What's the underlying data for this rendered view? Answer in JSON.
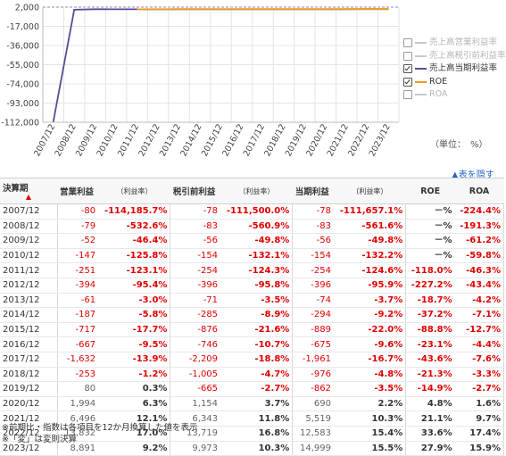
{
  "chart_data": {
    "type": "line",
    "categories": [
      "2007/12",
      "2008/12",
      "2009/12",
      "2010/12",
      "2011/12",
      "2012/12",
      "2013/12",
      "2014/12",
      "2015/12",
      "2016/12",
      "2017/12",
      "2018/12",
      "2019/12",
      "2020/12",
      "2021/12",
      "2022/12",
      "2023/12"
    ],
    "y_ticks": [
      "2,000",
      "-17,000",
      "-36,000",
      "-55,000",
      "-74,000",
      "-93,000",
      "-112,000"
    ],
    "ylim": [
      -112000,
      2000
    ],
    "series": [
      {
        "name": "売上高当期利益率",
        "color": "#5c4a96",
        "values": [
          -111657.1,
          -561.6,
          -49.8,
          -132.2,
          -124.6,
          -95.9,
          -3.7,
          -9.2,
          -22.0,
          -9.6,
          -16.7,
          -4.8,
          -3.5,
          2.2,
          10.3,
          15.4,
          15.5
        ]
      },
      {
        "name": "ROE",
        "color": "#f29a18",
        "values": [
          null,
          null,
          null,
          null,
          -118.0,
          -227.2,
          -18.7,
          -37.2,
          -88.8,
          -23.1,
          -43.6,
          -21.3,
          -14.9,
          4.8,
          21.1,
          33.6,
          27.9
        ]
      }
    ],
    "legend": [
      {
        "label": "売上高営業利益率",
        "checked": false,
        "color": "#c8c8c8"
      },
      {
        "label": "売上高税引前利益率",
        "checked": false,
        "color": "#c8c8c8"
      },
      {
        "label": "売上高当期利益率",
        "checked": true,
        "color": "#5c4a96"
      },
      {
        "label": "ROE",
        "checked": true,
        "color": "#f29a18"
      },
      {
        "label": "ROA",
        "checked": false,
        "color": "#c8c8c8"
      }
    ],
    "legend_position": "right",
    "unit_note": "（単位：　%）"
  },
  "hide_table_label": "▲表を隠す",
  "table": {
    "headers": [
      "決算期",
      "営業利益",
      "（利益率）",
      "税引前利益",
      "（利益率）",
      "当期利益",
      "（利益率）",
      "ROE",
      "ROA"
    ],
    "sort_marker": "▲",
    "rows": [
      [
        "2007/12",
        "-80",
        "-114,185.7%",
        "-78",
        "-111,500.0%",
        "-78",
        "-111,657.1%",
        "－%",
        "-224.4%"
      ],
      [
        "2008/12",
        "-79",
        "-532.6%",
        "-83",
        "-560.9%",
        "-83",
        "-561.6%",
        "－%",
        "-191.3%"
      ],
      [
        "2009/12",
        "-52",
        "-46.4%",
        "-56",
        "-49.8%",
        "-56",
        "-49.8%",
        "－%",
        "-61.2%"
      ],
      [
        "2010/12",
        "-147",
        "-125.8%",
        "-154",
        "-132.1%",
        "-154",
        "-132.2%",
        "－%",
        "-59.8%"
      ],
      [
        "2011/12",
        "-251",
        "-123.1%",
        "-254",
        "-124.3%",
        "-254",
        "-124.6%",
        "-118.0%",
        "-46.3%"
      ],
      [
        "2012/12",
        "-394",
        "-95.4%",
        "-396",
        "-95.8%",
        "-396",
        "-95.9%",
        "-227.2%",
        "-43.4%"
      ],
      [
        "2013/12",
        "-61",
        "-3.0%",
        "-71",
        "-3.5%",
        "-74",
        "-3.7%",
        "-18.7%",
        "-4.2%"
      ],
      [
        "2014/12",
        "-187",
        "-5.8%",
        "-285",
        "-8.9%",
        "-294",
        "-9.2%",
        "-37.2%",
        "-7.1%"
      ],
      [
        "2015/12",
        "-717",
        "-17.7%",
        "-876",
        "-21.6%",
        "-889",
        "-22.0%",
        "-88.8%",
        "-12.7%"
      ],
      [
        "2016/12",
        "-667",
        "-9.5%",
        "-746",
        "-10.7%",
        "-675",
        "-9.6%",
        "-23.1%",
        "-4.4%"
      ],
      [
        "2017/12",
        "-1,632",
        "-13.9%",
        "-2,209",
        "-18.8%",
        "-1,961",
        "-16.7%",
        "-43.6%",
        "-7.6%"
      ],
      [
        "2018/12",
        "-253",
        "-1.2%",
        "-1,005",
        "-4.7%",
        "-976",
        "-4.8%",
        "-21.3%",
        "-3.3%"
      ],
      [
        "2019/12",
        "80",
        "0.3%",
        "-665",
        "-2.7%",
        "-862",
        "-3.5%",
        "-14.9%",
        "-2.7%"
      ],
      [
        "2020/12",
        "1,994",
        "6.3%",
        "1,154",
        "3.7%",
        "690",
        "2.2%",
        "4.8%",
        "1.6%"
      ],
      [
        "2021/12",
        "6,496",
        "12.1%",
        "6,343",
        "11.8%",
        "5,519",
        "10.3%",
        "21.1%",
        "9.7%"
      ],
      [
        "2022/12",
        "13,832",
        "17.0%",
        "13,719",
        "16.8%",
        "12,583",
        "15.4%",
        "33.6%",
        "17.4%"
      ],
      [
        "2023/12",
        "8,891",
        "9.2%",
        "9,973",
        "10.3%",
        "14,999",
        "15.5%",
        "27.9%",
        "15.9%"
      ]
    ]
  },
  "footnotes": [
    "※前期比・指数は各項目を12か月換算した値を表示",
    "※「変」は変則決算"
  ]
}
